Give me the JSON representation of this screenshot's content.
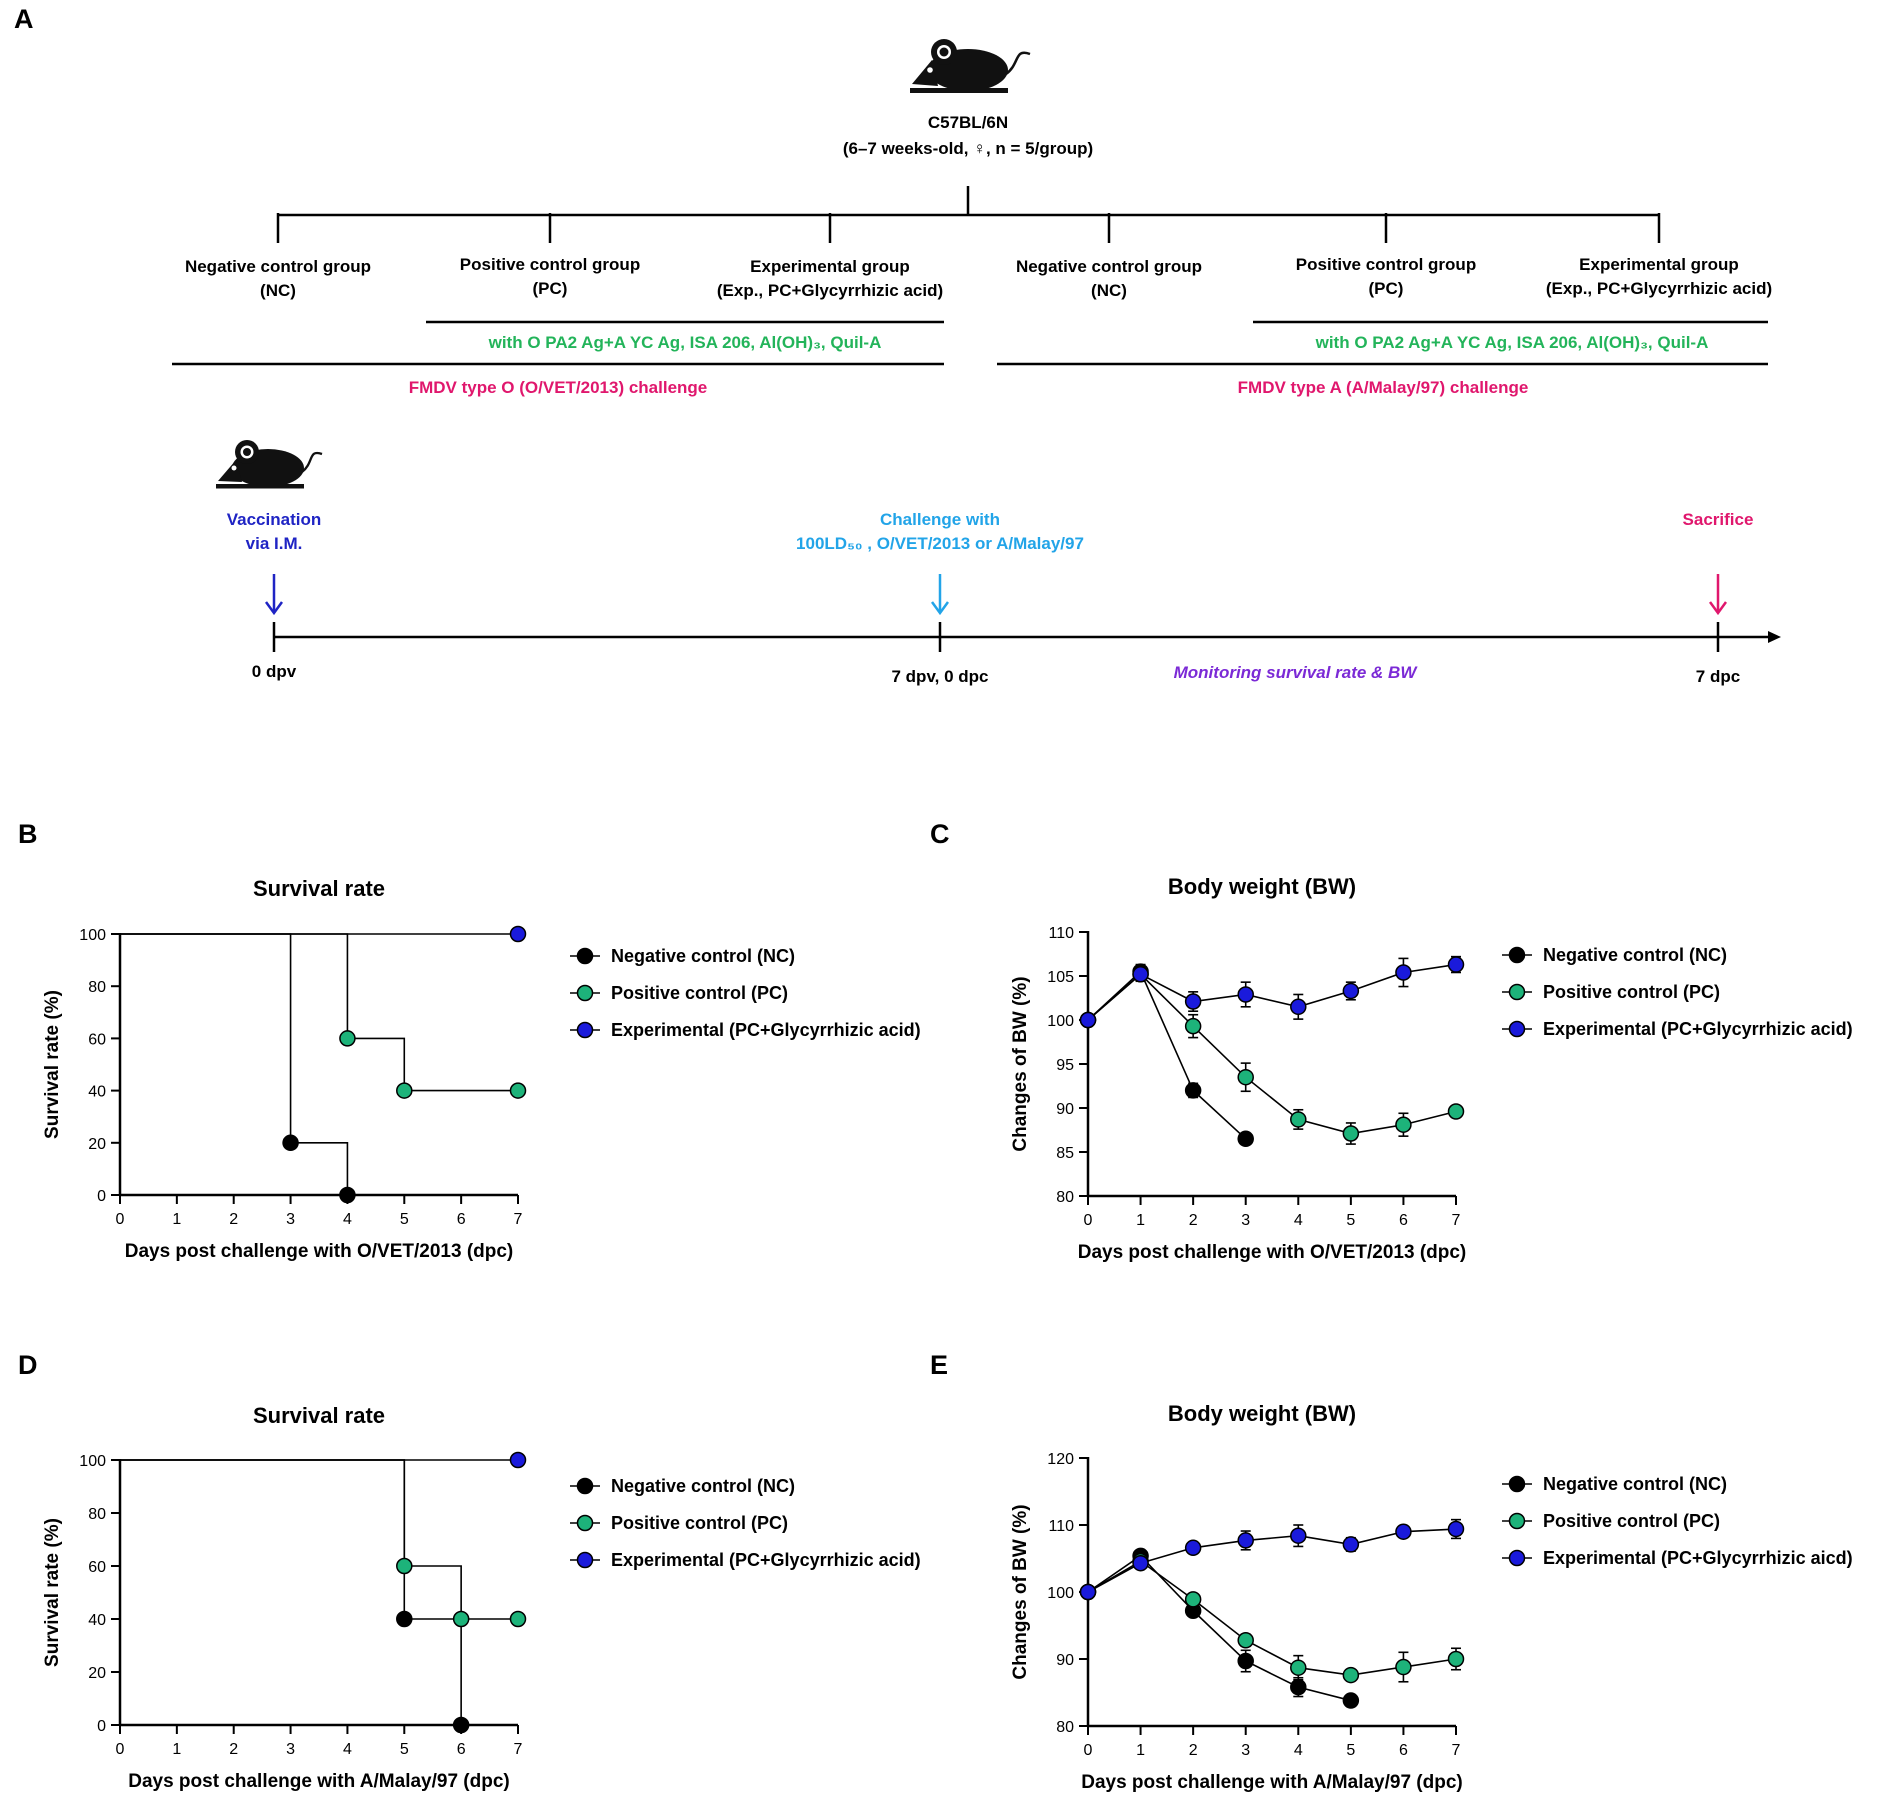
{
  "panel_letters": {
    "a": "A",
    "b": "B",
    "c": "C",
    "d": "D",
    "e": "E"
  },
  "panel_a": {
    "strain": "C57BL/6N",
    "strain_details": "(6–7 weeks-old, ♀, n = 5/group)",
    "groups_left": [
      {
        "name": "Negative control group",
        "abbr": "(NC)"
      },
      {
        "name": "Positive control group",
        "abbr": "(PC)"
      },
      {
        "name": "Experimental group",
        "abbr": "(Exp., PC+Glycyrrhizic acid)"
      }
    ],
    "groups_right": [
      {
        "name": "Negative control group",
        "abbr": "(NC)"
      },
      {
        "name": "Positive control group",
        "abbr": "(PC)"
      },
      {
        "name": "Experimental group",
        "abbr": "(Exp., PC+Glycyrrhizic acid)"
      }
    ],
    "vaccine_formulation": "with O PA2 Ag+A YC Ag, ISA 206, Al(OH)₃, Quil-A",
    "challenge_left": "FMDV type O (O/VET/2013) challenge",
    "challenge_right": "FMDV type A (A/Malay/97) challenge",
    "timeline": {
      "vaccination_line1": "Vaccination",
      "vaccination_line2": "via I.M.",
      "challenge_line1": "Challenge with",
      "challenge_line2": "100LD₅₀ , O/VET/2013 or A/Malay/97",
      "sacrifice": "Sacrifice",
      "tick_start": "0 dpv",
      "tick_mid": "7 dpv, 0 dpc",
      "tick_end": "7 dpc",
      "monitoring": "Monitoring survival rate & BW"
    }
  },
  "colors": {
    "nc": "#000000",
    "pc": "#1db37a",
    "exp": "#1a1adb",
    "dark_blue": "#1f24c4",
    "light_blue": "#22a4e8",
    "formulation_green": "#23b45a",
    "challenge_pink": "#e0176d",
    "monitoring_purple": "#7b2ad6"
  },
  "chart_data": [
    {
      "panel": "B",
      "type": "line",
      "title": "Survival rate",
      "xlabel": "Days post challenge with O/VET/2013 (dpc)",
      "ylabel": "Survival rate (%)",
      "xlim": [
        0,
        7
      ],
      "ylim": [
        0,
        100
      ],
      "xticks": [
        0,
        1,
        2,
        3,
        4,
        5,
        6,
        7
      ],
      "yticks": [
        0,
        20,
        40,
        60,
        80,
        100
      ],
      "step": true,
      "series": [
        {
          "name": "Negative control (NC)",
          "key": "nc",
          "x": [
            0,
            3,
            4
          ],
          "y": [
            100,
            20,
            0
          ],
          "markers": [
            [
              3,
              20
            ],
            [
              4,
              0
            ]
          ]
        },
        {
          "name": "Positive control (PC)",
          "key": "pc",
          "x": [
            0,
            4,
            5,
            7
          ],
          "y": [
            100,
            60,
            40,
            40
          ],
          "markers": [
            [
              4,
              60
            ],
            [
              5,
              40
            ],
            [
              7,
              40
            ]
          ]
        },
        {
          "name": "Experimental (PC+Glycyrrhizic acid)",
          "key": "exp",
          "x": [
            0,
            7
          ],
          "y": [
            100,
            100
          ],
          "markers": [
            [
              7,
              100
            ]
          ]
        }
      ]
    },
    {
      "panel": "C",
      "type": "line",
      "title": "Body weight (BW)",
      "xlabel": "Days post challenge with O/VET/2013 (dpc)",
      "ylabel": "Changes of BW (%)",
      "xlim": [
        0,
        7
      ],
      "ylim": [
        80,
        110
      ],
      "xticks": [
        0,
        1,
        2,
        3,
        4,
        5,
        6,
        7
      ],
      "yticks": [
        80,
        85,
        90,
        95,
        100,
        105,
        110
      ],
      "step": false,
      "series": [
        {
          "name": "Negative control (NC)",
          "key": "nc",
          "x": [
            0,
            1,
            2,
            3
          ],
          "y": [
            100,
            105.5,
            92,
            86.5
          ],
          "err": [
            0,
            0.8,
            0.8,
            0.3
          ]
        },
        {
          "name": "Positive control (PC)",
          "key": "pc",
          "x": [
            0,
            1,
            2,
            3,
            4,
            5,
            6,
            7
          ],
          "y": [
            100,
            105.2,
            99.3,
            93.5,
            88.7,
            87.1,
            88.1,
            89.6
          ],
          "err": [
            0,
            0.6,
            1.3,
            1.6,
            1.1,
            1.2,
            1.3,
            0.5
          ]
        },
        {
          "name": "Experimental (PC+Glycyrrhizic acid)",
          "key": "exp",
          "x": [
            0,
            1,
            2,
            3,
            4,
            5,
            6,
            7
          ],
          "y": [
            100,
            105.2,
            102.1,
            102.9,
            101.5,
            103.3,
            105.4,
            106.3
          ],
          "err": [
            0,
            0.8,
            1.1,
            1.4,
            1.4,
            1.0,
            1.6,
            0.9
          ]
        }
      ]
    },
    {
      "panel": "D",
      "type": "line",
      "title": "Survival rate",
      "xlabel": "Days post challenge with A/Malay/97 (dpc)",
      "ylabel": "Survival rate (%)",
      "xlim": [
        0,
        7
      ],
      "ylim": [
        0,
        100
      ],
      "xticks": [
        0,
        1,
        2,
        3,
        4,
        5,
        6,
        7
      ],
      "yticks": [
        0,
        20,
        40,
        60,
        80,
        100
      ],
      "step": true,
      "series": [
        {
          "name": "Negative control (NC)",
          "key": "nc",
          "x": [
            0,
            5,
            6
          ],
          "y": [
            100,
            40,
            0
          ],
          "markers": [
            [
              5,
              40
            ],
            [
              6,
              0
            ]
          ]
        },
        {
          "name": "Positive control (PC)",
          "key": "pc",
          "x": [
            0,
            5,
            6,
            7
          ],
          "y": [
            100,
            60,
            40,
            40
          ],
          "markers": [
            [
              5,
              60
            ],
            [
              6,
              40
            ],
            [
              7,
              40
            ]
          ]
        },
        {
          "name": "Experimental (PC+Glycyrrhizic acid)",
          "key": "exp",
          "x": [
            0,
            7
          ],
          "y": [
            100,
            100
          ],
          "markers": [
            [
              7,
              100
            ]
          ]
        }
      ]
    },
    {
      "panel": "E",
      "type": "line",
      "title": "Body weight (BW)",
      "xlabel": "Days post challenge with A/Malay/97 (dpc)",
      "ylabel": "Changes of BW (%)",
      "xlim": [
        0,
        7
      ],
      "ylim": [
        80,
        120
      ],
      "xticks": [
        0,
        1,
        2,
        3,
        4,
        5,
        6,
        7
      ],
      "yticks": [
        80,
        90,
        100,
        110,
        120
      ],
      "step": false,
      "series": [
        {
          "name": "Negative control (NC)",
          "key": "nc",
          "x": [
            0,
            1,
            2,
            3,
            4,
            5
          ],
          "y": [
            100,
            105.4,
            97.2,
            89.7,
            85.8,
            83.8
          ],
          "err": [
            0,
            0.5,
            0.8,
            1.6,
            1.4,
            0.4
          ]
        },
        {
          "name": "Positive control (PC)",
          "key": "pc",
          "x": [
            0,
            1,
            2,
            3,
            4,
            5,
            6,
            7
          ],
          "y": [
            100,
            104.6,
            98.9,
            92.8,
            88.7,
            87.6,
            88.8,
            90
          ],
          "err": [
            0,
            0.5,
            0.7,
            0.9,
            1.8,
            0.8,
            2.2,
            1.6
          ]
        },
        {
          "name": "Experimental (PC+Glycyrrhizic aicd)",
          "key": "exp",
          "x": [
            0,
            1,
            2,
            3,
            4,
            5,
            6,
            7
          ],
          "y": [
            100,
            104.3,
            106.6,
            107.7,
            108.4,
            107.1,
            109,
            109.4
          ],
          "err": [
            0,
            0.6,
            0.4,
            1.4,
            1.6,
            1.0,
            0.4,
            1.4
          ]
        }
      ]
    }
  ]
}
